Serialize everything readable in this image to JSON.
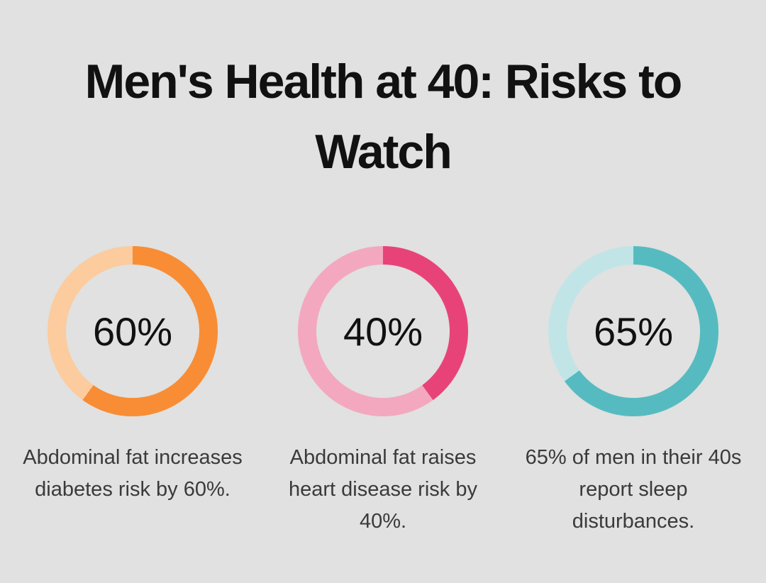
{
  "background_color": "#e0e1e0",
  "title": "Men's Health at 40: Risks to Watch",
  "chart_data": [
    {
      "type": "pie",
      "subtype": "donut",
      "percent": 60,
      "percent_label": "60%",
      "values": [
        60,
        40
      ],
      "start_angle_deg": 0,
      "direction": "clockwise",
      "color_filled": "#f88d35",
      "color_remainder": "#fccb9e",
      "caption": "Abdominal fat increases diabetes risk by 60%."
    },
    {
      "type": "pie",
      "subtype": "donut",
      "percent": 40,
      "percent_label": "40%",
      "values": [
        40,
        60
      ],
      "start_angle_deg": 0,
      "direction": "clockwise",
      "color_filled": "#e84379",
      "color_remainder": "#f3a8c0",
      "caption": "Abdominal fat raises heart disease risk by 40%."
    },
    {
      "type": "pie",
      "subtype": "donut",
      "percent": 65,
      "percent_label": "65%",
      "values": [
        65,
        35
      ],
      "start_angle_deg": 0,
      "direction": "clockwise",
      "color_filled": "#56bbc1",
      "color_remainder": "#c1e5e7",
      "caption": "65% of men in their 40s report sleep disturbances."
    }
  ]
}
